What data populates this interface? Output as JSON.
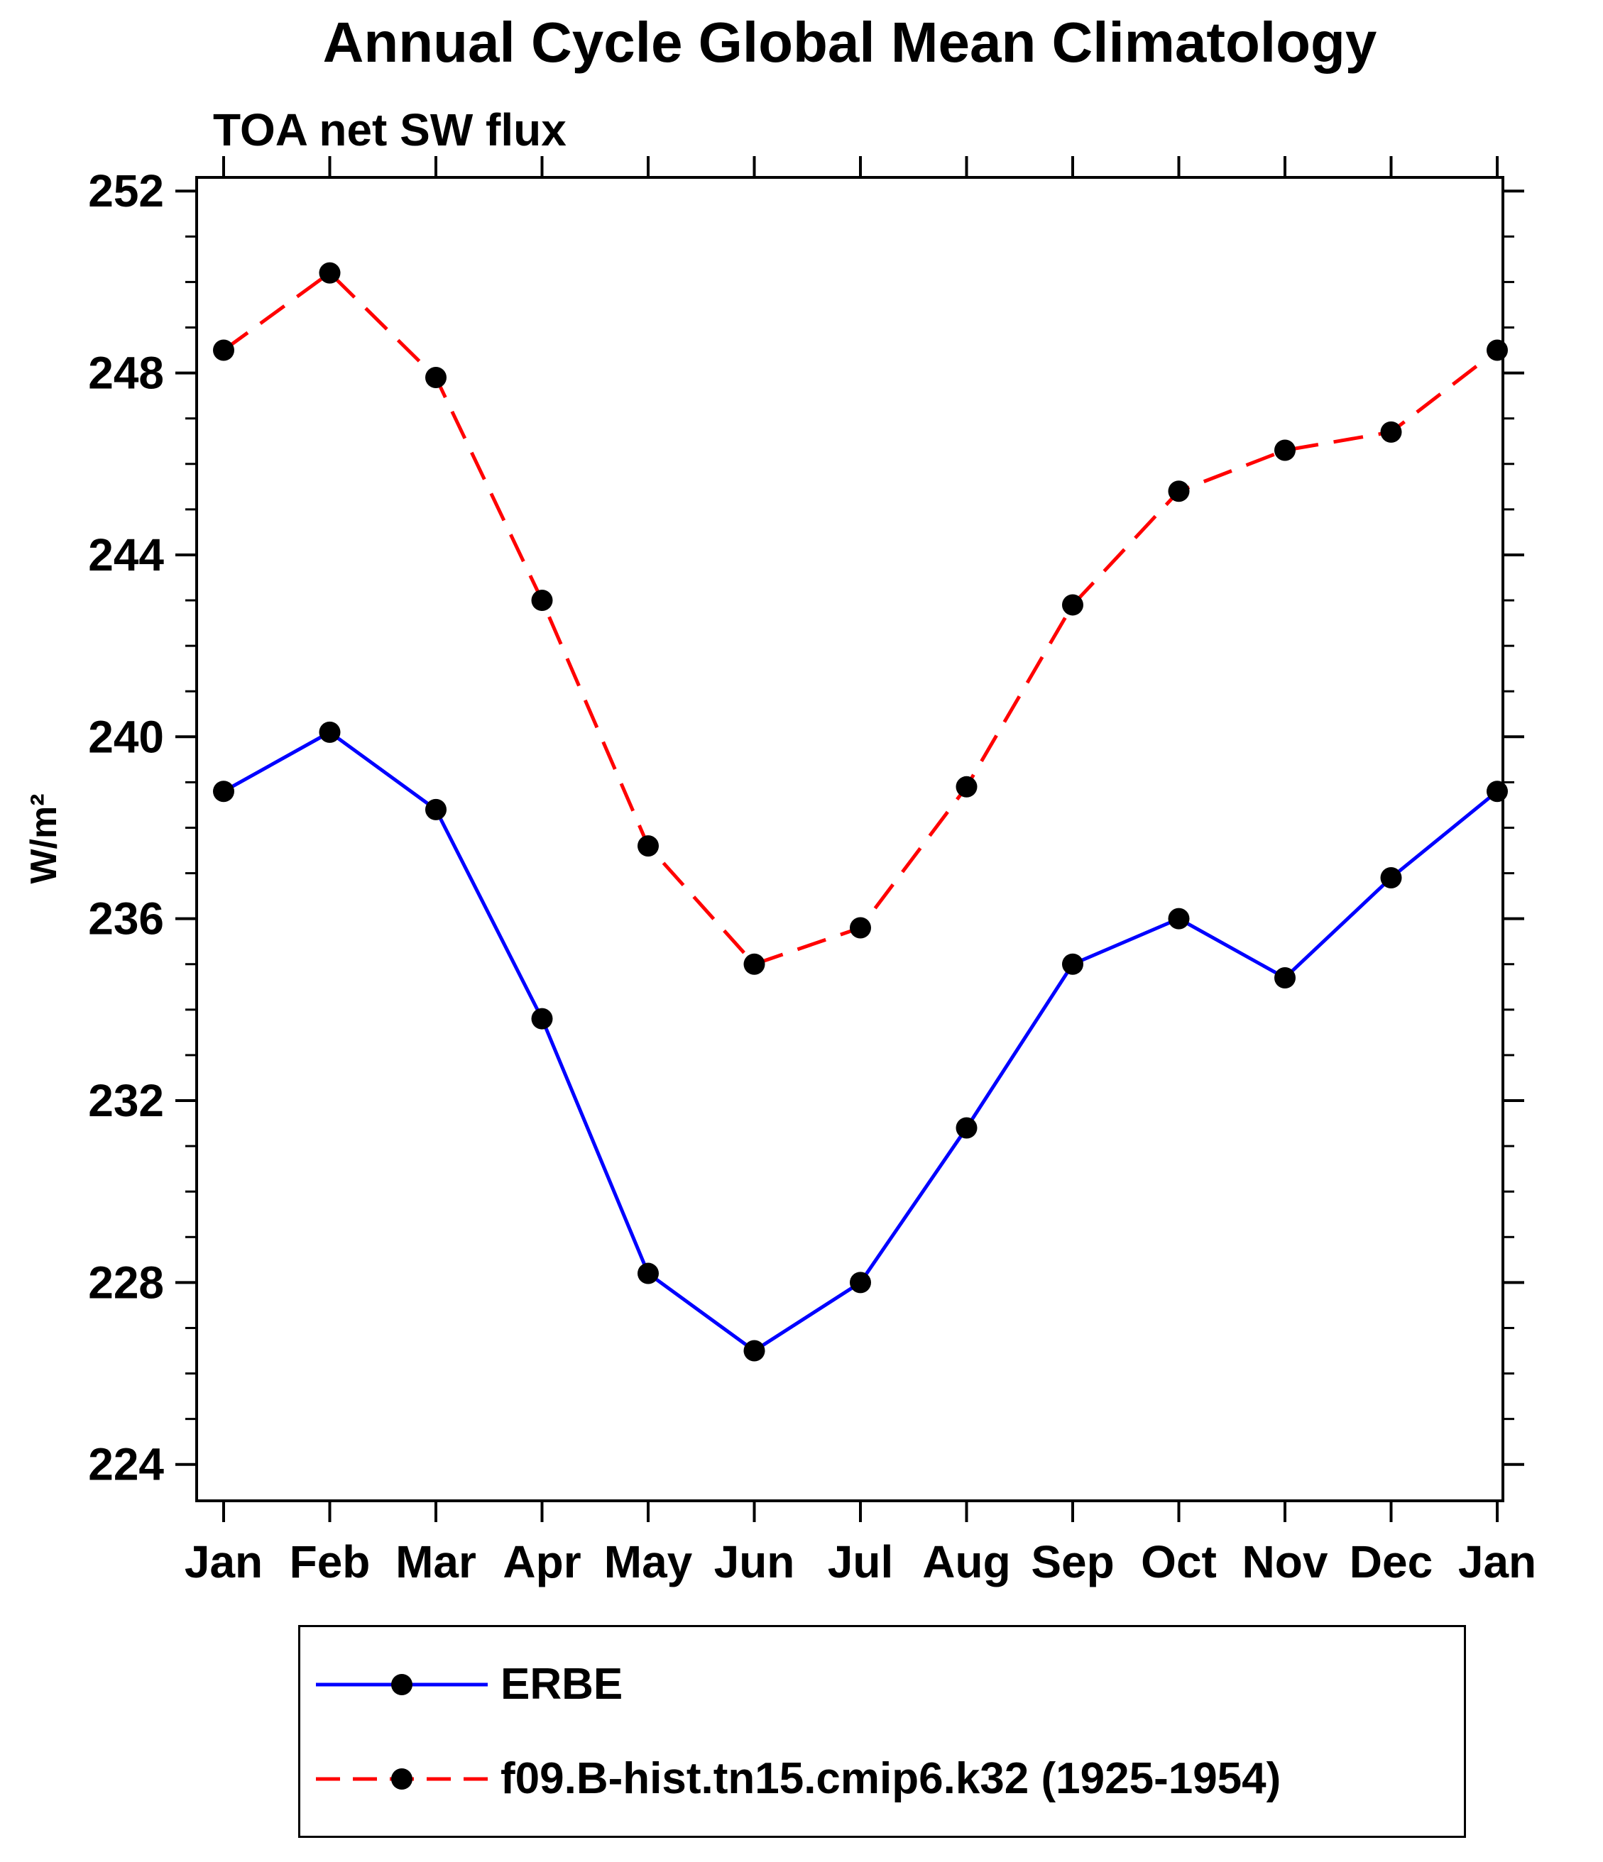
{
  "page": {
    "background": "#ffffff"
  },
  "chart_data": {
    "type": "line",
    "title": "Annual Cycle Global Mean Climatology",
    "subtitle": "TOA net SW flux",
    "xlabel": "",
    "ylabel": "W/m²",
    "categories": [
      "Jan",
      "Feb",
      "Mar",
      "Apr",
      "May",
      "Jun",
      "Jul",
      "Aug",
      "Sep",
      "Oct",
      "Nov",
      "Dec",
      "Jan"
    ],
    "yticks": [
      224,
      228,
      232,
      236,
      240,
      244,
      248,
      252
    ],
    "ylim": [
      223.2,
      252.3
    ],
    "minor_tick_step": 1,
    "grid": false,
    "legend_position": "bottom",
    "marker": "filled-circle",
    "marker_color": "#000000",
    "axis_color": "#000000",
    "series": [
      {
        "name": "ERBE",
        "color": "#0000ff",
        "style": "solid",
        "values": [
          238.8,
          240.1,
          238.4,
          233.8,
          228.2,
          226.5,
          228.0,
          231.4,
          235.0,
          236.0,
          234.7,
          236.9,
          238.8
        ]
      },
      {
        "name": "f09.B-hist.tn15.cmip6.k32 (1925-1954)",
        "color": "#ff0000",
        "style": "dashed",
        "values": [
          248.5,
          250.2,
          247.9,
          243.0,
          237.6,
          235.0,
          235.8,
          238.9,
          242.9,
          245.4,
          246.3,
          246.7,
          248.5
        ]
      }
    ]
  }
}
